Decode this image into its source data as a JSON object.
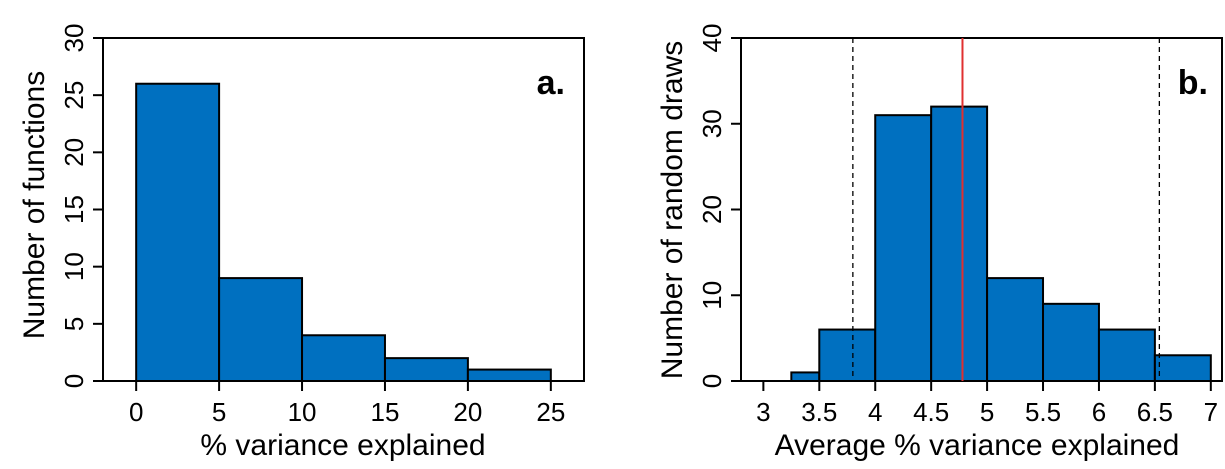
{
  "chart_data": [
    {
      "type": "bar",
      "panel_label": "a.",
      "xlabel": "% variance explained",
      "ylabel": "Number of functions",
      "bins": [
        [
          0,
          5
        ],
        [
          5,
          10
        ],
        [
          10,
          15
        ],
        [
          15,
          20
        ],
        [
          20,
          25
        ]
      ],
      "values": [
        26,
        9,
        4,
        2,
        1
      ],
      "xlim": [
        -2,
        27
      ],
      "ylim": [
        0,
        30
      ],
      "xticks": [
        0,
        5,
        10,
        15,
        20,
        25
      ],
      "xtick_labels": [
        "0",
        "5",
        "10",
        "15",
        "20",
        "25"
      ],
      "yticks": [
        0,
        5,
        10,
        15,
        20,
        25,
        30
      ],
      "ytick_labels": [
        "0",
        "5",
        "10",
        "15",
        "20",
        "25",
        "30"
      ],
      "bar_color": "#0070c0",
      "grid": false,
      "vlines": []
    },
    {
      "type": "bar",
      "panel_label": "b.",
      "xlabel": "Average % variance explained",
      "ylabel": "Number of random draws",
      "bins": [
        [
          3.0,
          3.25
        ],
        [
          3.25,
          3.5
        ],
        [
          3.5,
          4.0
        ],
        [
          4.0,
          4.5
        ],
        [
          4.5,
          5.0
        ],
        [
          5.0,
          5.5
        ],
        [
          5.5,
          6.0
        ],
        [
          6.0,
          6.5
        ],
        [
          6.5,
          7.0
        ]
      ],
      "values": [
        0,
        1,
        6,
        31,
        32,
        12,
        9,
        6,
        3
      ],
      "xlim": [
        2.8,
        7.1
      ],
      "ylim": [
        0,
        40
      ],
      "xticks": [
        3,
        3.5,
        4,
        4.5,
        5,
        5.5,
        6,
        6.5,
        7
      ],
      "xtick_labels": [
        "3",
        "3.5",
        "4",
        "4.5",
        "5",
        "5.5",
        "6",
        "6.5",
        "7"
      ],
      "yticks": [
        0,
        10,
        20,
        30,
        40
      ],
      "ytick_labels": [
        "0",
        "10",
        "20",
        "30",
        "40"
      ],
      "bar_color": "#0070c0",
      "grid": false,
      "vlines": [
        {
          "x": 3.8,
          "style": "dashed",
          "color": "#000000"
        },
        {
          "x": 4.78,
          "style": "solid",
          "color": "#e03030"
        },
        {
          "x": 6.54,
          "style": "dashed",
          "color": "#000000"
        }
      ]
    }
  ]
}
